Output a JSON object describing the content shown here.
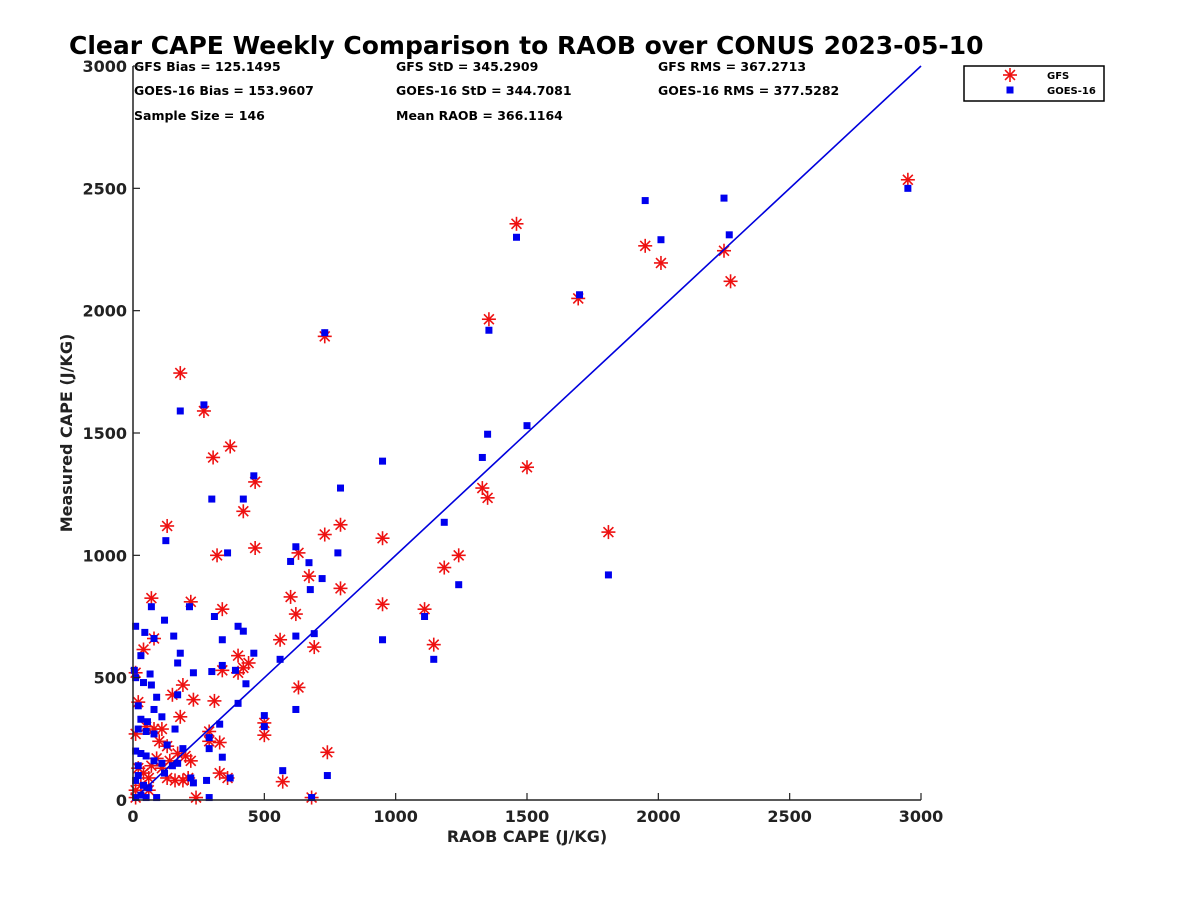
{
  "chart_data": {
    "type": "scatter",
    "title": "Clear CAPE Weekly Comparison to RAOB over CONUS 2023-05-10",
    "xlabel": "RAOB CAPE (J/KG)",
    "ylabel": "Measured CAPE (J/KG)",
    "xlim": [
      0,
      3000
    ],
    "ylim": [
      0,
      3000
    ],
    "xticks": [
      0,
      500,
      1000,
      1500,
      2000,
      2500,
      3000
    ],
    "yticks": [
      0,
      500,
      1000,
      1500,
      2000,
      2500,
      3000
    ],
    "grid": false,
    "legend_position": "top-right",
    "stats": [
      [
        "GFS Bias = 125.1495",
        "GFS StD = 345.2909",
        "GFS RMS = 367.2713"
      ],
      [
        "GOES-16 Bias = 153.9607",
        "GOES-16 StD = 344.7081",
        "GOES-16 RMS = 377.5282"
      ],
      [
        "Sample Size = 146",
        "Mean RAOB = 366.1164"
      ]
    ],
    "reference_line": {
      "from": [
        0,
        0
      ],
      "to": [
        3000,
        3000
      ],
      "color": "#0000dd"
    },
    "series": [
      {
        "name": "GFS",
        "marker": "asterisk",
        "color": "#ee1111",
        "points": [
          [
            2950,
            2535
          ],
          [
            1460,
            2355
          ],
          [
            1950,
            2265
          ],
          [
            2010,
            2195
          ],
          [
            2250,
            2245
          ],
          [
            2275,
            2120
          ],
          [
            1695,
            2050
          ],
          [
            1355,
            1965
          ],
          [
            730,
            1895
          ],
          [
            180,
            1745
          ],
          [
            270,
            1590
          ],
          [
            370,
            1445
          ],
          [
            305,
            1400
          ],
          [
            1500,
            1360
          ],
          [
            1330,
            1275
          ],
          [
            1350,
            1235
          ],
          [
            465,
            1300
          ],
          [
            420,
            1180
          ],
          [
            130,
            1120
          ],
          [
            790,
            1125
          ],
          [
            730,
            1085
          ],
          [
            950,
            1070
          ],
          [
            320,
            1000
          ],
          [
            630,
            1010
          ],
          [
            465,
            1030
          ],
          [
            1240,
            1000
          ],
          [
            1185,
            950
          ],
          [
            1810,
            1095
          ],
          [
            670,
            915
          ],
          [
            600,
            830
          ],
          [
            790,
            865
          ],
          [
            620,
            760
          ],
          [
            70,
            825
          ],
          [
            220,
            810
          ],
          [
            340,
            780
          ],
          [
            950,
            800
          ],
          [
            1110,
            780
          ],
          [
            1145,
            635
          ],
          [
            560,
            655
          ],
          [
            690,
            625
          ],
          [
            400,
            590
          ],
          [
            440,
            560
          ],
          [
            420,
            540
          ],
          [
            340,
            530
          ],
          [
            400,
            520
          ],
          [
            40,
            615
          ],
          [
            80,
            660
          ],
          [
            10,
            520
          ],
          [
            630,
            460
          ],
          [
            190,
            470
          ],
          [
            150,
            430
          ],
          [
            230,
            410
          ],
          [
            310,
            405
          ],
          [
            20,
            400
          ],
          [
            50,
            300
          ],
          [
            80,
            290
          ],
          [
            110,
            290
          ],
          [
            180,
            340
          ],
          [
            130,
            220
          ],
          [
            100,
            240
          ],
          [
            500,
            315
          ],
          [
            500,
            265
          ],
          [
            290,
            280
          ],
          [
            10,
            270
          ],
          [
            330,
            235
          ],
          [
            170,
            190
          ],
          [
            200,
            180
          ],
          [
            290,
            240
          ],
          [
            740,
            195
          ],
          [
            360,
            90
          ],
          [
            330,
            110
          ],
          [
            220,
            160
          ],
          [
            130,
            90
          ],
          [
            160,
            80
          ],
          [
            190,
            80
          ],
          [
            570,
            75
          ],
          [
            10,
            10
          ],
          [
            40,
            110
          ],
          [
            70,
            140
          ],
          [
            90,
            170
          ],
          [
            30,
            60
          ],
          [
            60,
            40
          ],
          [
            10,
            40
          ],
          [
            240,
            10
          ],
          [
            680,
            10
          ],
          [
            20,
            130
          ],
          [
            60,
            90
          ],
          [
            110,
            130
          ],
          [
            140,
            160
          ],
          [
            210,
            90
          ]
        ]
      },
      {
        "name": "GOES-16",
        "marker": "square",
        "color": "#0000ee",
        "points": [
          [
            2950,
            2500
          ],
          [
            1950,
            2450
          ],
          [
            2250,
            2460
          ],
          [
            2270,
            2310
          ],
          [
            2010,
            2290
          ],
          [
            1460,
            2300
          ],
          [
            1700,
            2065
          ],
          [
            1355,
            1920
          ],
          [
            730,
            1910
          ],
          [
            270,
            1615
          ],
          [
            180,
            1590
          ],
          [
            1350,
            1495
          ],
          [
            1500,
            1530
          ],
          [
            1330,
            1400
          ],
          [
            950,
            1385
          ],
          [
            460,
            1325
          ],
          [
            790,
            1275
          ],
          [
            300,
            1230
          ],
          [
            420,
            1230
          ],
          [
            1185,
            1135
          ],
          [
            125,
            1060
          ],
          [
            360,
            1010
          ],
          [
            620,
            1035
          ],
          [
            600,
            975
          ],
          [
            670,
            970
          ],
          [
            780,
            1010
          ],
          [
            720,
            905
          ],
          [
            1240,
            880
          ],
          [
            1810,
            920
          ],
          [
            675,
            860
          ],
          [
            215,
            790
          ],
          [
            70,
            790
          ],
          [
            310,
            750
          ],
          [
            1110,
            750
          ],
          [
            400,
            710
          ],
          [
            120,
            735
          ],
          [
            420,
            690
          ],
          [
            690,
            680
          ],
          [
            45,
            685
          ],
          [
            155,
            670
          ],
          [
            80,
            660
          ],
          [
            340,
            655
          ],
          [
            620,
            670
          ],
          [
            950,
            655
          ],
          [
            10,
            710
          ],
          [
            460,
            600
          ],
          [
            180,
            600
          ],
          [
            30,
            590
          ],
          [
            560,
            575
          ],
          [
            1145,
            575
          ],
          [
            170,
            560
          ],
          [
            340,
            550
          ],
          [
            230,
            520
          ],
          [
            300,
            525
          ],
          [
            390,
            530
          ],
          [
            430,
            475
          ],
          [
            65,
            515
          ],
          [
            5,
            530
          ],
          [
            10,
            500
          ],
          [
            70,
            470
          ],
          [
            40,
            480
          ],
          [
            90,
            420
          ],
          [
            170,
            430
          ],
          [
            400,
            395
          ],
          [
            620,
            370
          ],
          [
            80,
            370
          ],
          [
            20,
            385
          ],
          [
            110,
            340
          ],
          [
            30,
            330
          ],
          [
            55,
            320
          ],
          [
            500,
            345
          ],
          [
            500,
            300
          ],
          [
            330,
            310
          ],
          [
            160,
            290
          ],
          [
            20,
            290
          ],
          [
            50,
            280
          ],
          [
            80,
            270
          ],
          [
            290,
            255
          ],
          [
            130,
            225
          ],
          [
            190,
            210
          ],
          [
            290,
            210
          ],
          [
            10,
            200
          ],
          [
            30,
            190
          ],
          [
            50,
            180
          ],
          [
            340,
            175
          ],
          [
            80,
            160
          ],
          [
            110,
            150
          ],
          [
            150,
            140
          ],
          [
            170,
            150
          ],
          [
            20,
            140
          ],
          [
            570,
            120
          ],
          [
            740,
            100
          ],
          [
            220,
            90
          ],
          [
            370,
            90
          ],
          [
            280,
            80
          ],
          [
            230,
            70
          ],
          [
            10,
            80
          ],
          [
            40,
            60
          ],
          [
            60,
            50
          ],
          [
            90,
            10
          ],
          [
            290,
            10
          ],
          [
            680,
            10
          ],
          [
            10,
            10
          ],
          [
            30,
            20
          ],
          [
            50,
            10
          ],
          [
            20,
            100
          ],
          [
            120,
            110
          ]
        ]
      }
    ]
  }
}
